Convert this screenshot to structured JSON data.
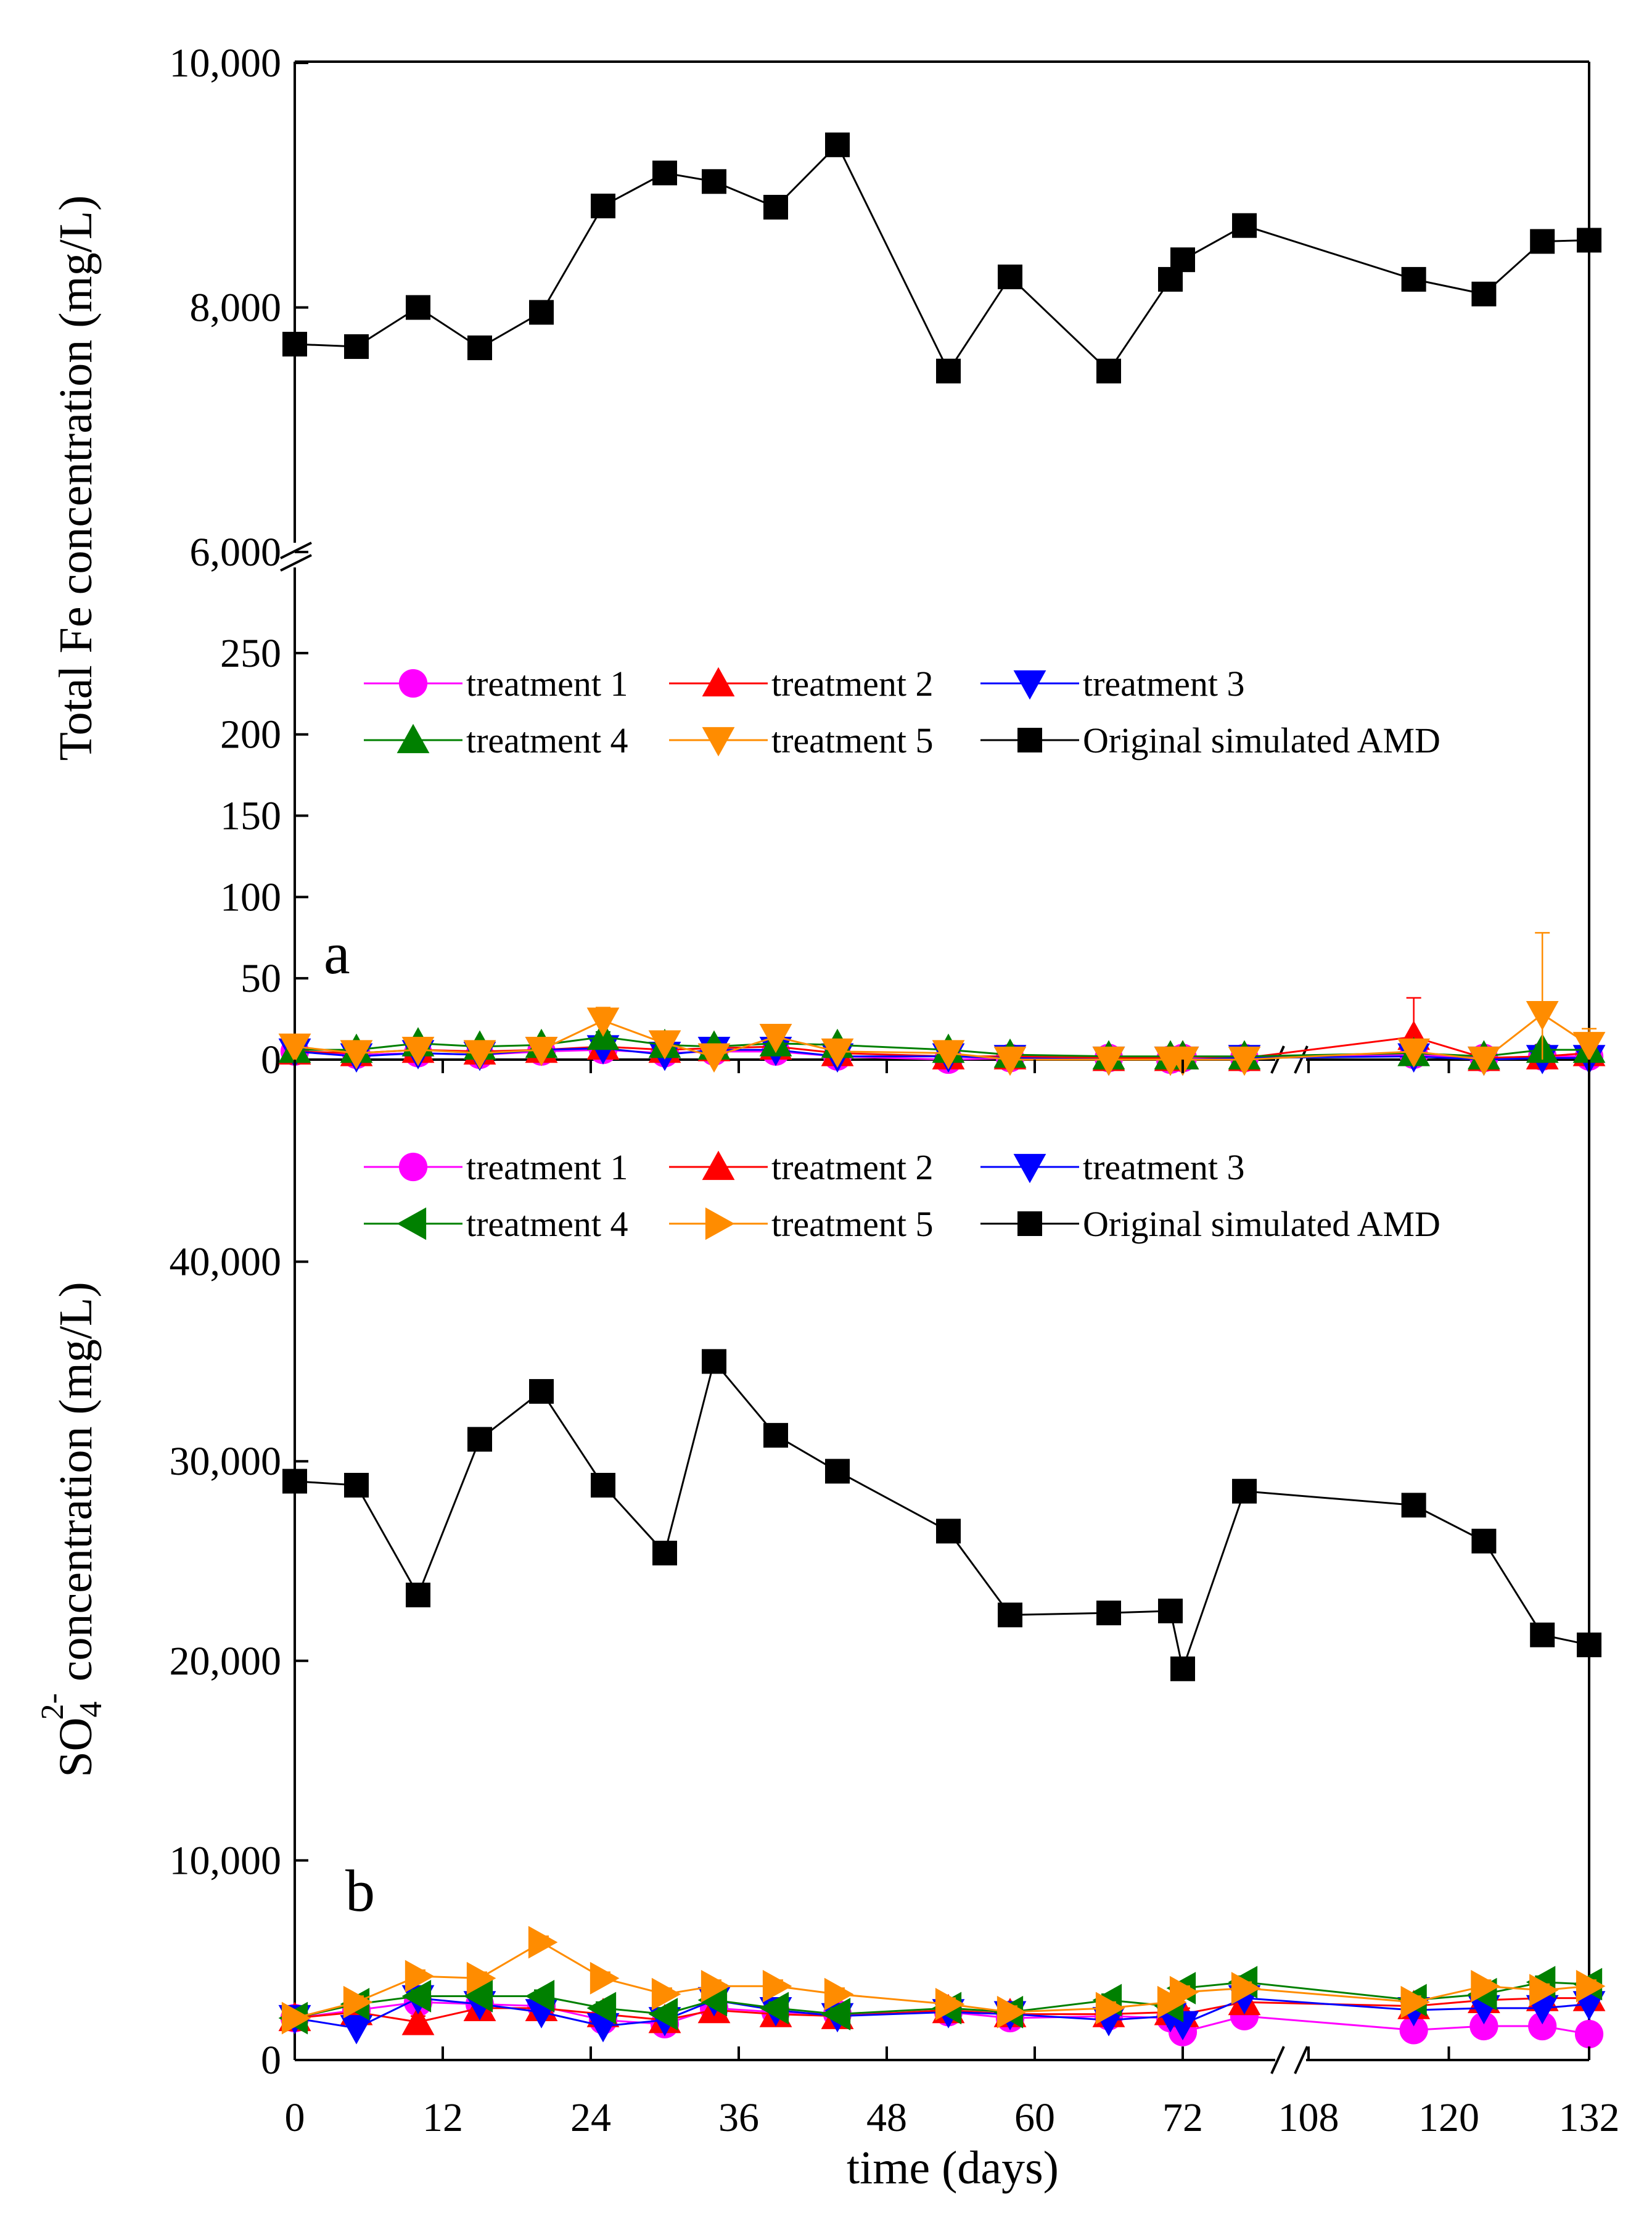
{
  "x_axis": {
    "title": "time (days)",
    "tick_labels": [
      "0",
      "12",
      "24",
      "36",
      "48",
      "60",
      "72",
      "108",
      "120",
      "132"
    ],
    "break_between": [
      80,
      106
    ]
  },
  "panels": [
    {
      "label": "a",
      "ylabel": "Total Fe concentration (mg/L)",
      "y_upper_ticks": [
        "6,000",
        "8,000",
        "10,000"
      ],
      "y_lower_ticks": [
        "0",
        "50",
        "100",
        "150",
        "200",
        "250"
      ],
      "legend_labels": [
        "treatment 1",
        "treatment 2",
        "treatment 3",
        "treatment 4",
        "treatment 5",
        "Original simulated AMD"
      ]
    },
    {
      "label": "b",
      "ylabel_parts": {
        "main": "SO",
        "sub": "4",
        "sup": "2-",
        "rest": " concentration (mg/L)"
      },
      "y_ticks": [
        "0",
        "10,000",
        "20,000",
        "30,000",
        "40,000"
      ],
      "legend_labels": [
        "treatment 1",
        "treatment 2",
        "treatment 3",
        "treatment 4",
        "treatment 5",
        "Original simulated AMD"
      ]
    }
  ],
  "chart_data": [
    {
      "type": "line",
      "panel": "a",
      "xlabel": "time (days)",
      "ylabel": "Total Fe concentration (mg/L)",
      "xlim": [
        0,
        132
      ],
      "x_break": [
        80,
        106
      ],
      "ylim_lower": [
        0,
        280
      ],
      "ylim_upper": [
        6000,
        10000
      ],
      "legend_position": "upper-center",
      "series": [
        {
          "name": "Original simulated AMD",
          "color": "#000000",
          "marker": "square",
          "x": [
            0,
            5,
            10,
            15,
            20,
            25,
            30,
            34,
            39,
            44,
            53,
            58,
            66,
            71,
            72,
            77,
            117,
            123,
            128,
            132
          ],
          "y": [
            7700,
            7680,
            8000,
            7670,
            7960,
            8830,
            9100,
            9030,
            8820,
            9330,
            7480,
            8250,
            7480,
            8230,
            8390,
            8670,
            8230,
            8110,
            8540,
            8550
          ]
        },
        {
          "name": "treatment 1",
          "color": "#ff00ff",
          "marker": "circle",
          "x": [
            0,
            5,
            10,
            15,
            20,
            25,
            30,
            34,
            39,
            44,
            53,
            58,
            66,
            71,
            72,
            77,
            117,
            123,
            128,
            132
          ],
          "y": [
            5,
            3,
            4,
            3,
            5,
            6,
            4,
            5,
            5,
            2,
            0,
            1,
            1,
            0,
            1,
            1,
            3,
            1,
            2,
            2
          ],
          "err": [
            1,
            1,
            1,
            1,
            1,
            2,
            1,
            1,
            1,
            1,
            1,
            1,
            1,
            1,
            1,
            1,
            2,
            1,
            1,
            1
          ]
        },
        {
          "name": "treatment 2",
          "color": "#ff0000",
          "marker": "triangle-up",
          "x": [
            0,
            5,
            10,
            15,
            20,
            25,
            30,
            34,
            39,
            44,
            53,
            58,
            66,
            71,
            72,
            77,
            117,
            123,
            128,
            132
          ],
          "y": [
            5,
            4,
            6,
            5,
            6,
            8,
            6,
            7,
            8,
            4,
            2,
            2,
            1,
            1,
            2,
            1,
            14,
            1,
            2,
            4
          ],
          "err": [
            1,
            2,
            2,
            1,
            2,
            3,
            2,
            2,
            2,
            2,
            1,
            1,
            1,
            1,
            1,
            1,
            24,
            1,
            2,
            12
          ]
        },
        {
          "name": "treatment 3",
          "color": "#0000ff",
          "marker": "triangle-down",
          "x": [
            0,
            5,
            10,
            15,
            20,
            25,
            30,
            34,
            39,
            44,
            53,
            58,
            66,
            71,
            72,
            77,
            117,
            123,
            128,
            132
          ],
          "y": [
            5,
            2,
            4,
            3,
            6,
            7,
            3,
            6,
            6,
            2,
            2,
            1,
            0,
            0,
            0,
            1,
            2,
            0,
            1,
            1
          ],
          "err": [
            1,
            1,
            1,
            1,
            1,
            2,
            1,
            1,
            1,
            1,
            1,
            1,
            1,
            1,
            1,
            1,
            1,
            1,
            1,
            1
          ]
        },
        {
          "name": "treatment 4",
          "color": "#008000",
          "marker": "triangle-up",
          "x": [
            0,
            5,
            10,
            15,
            20,
            25,
            30,
            34,
            39,
            44,
            53,
            58,
            66,
            71,
            72,
            77,
            117,
            123,
            128,
            132
          ],
          "y": [
            6,
            6,
            10,
            8,
            9,
            14,
            9,
            8,
            10,
            9,
            6,
            3,
            2,
            2,
            2,
            2,
            4,
            2,
            6,
            6
          ],
          "err": [
            1,
            2,
            2,
            2,
            2,
            3,
            2,
            2,
            2,
            2,
            1,
            1,
            1,
            1,
            1,
            1,
            3,
            1,
            3,
            2
          ]
        },
        {
          "name": "treatment 5",
          "color": "#ff8c00",
          "marker": "triangle-down",
          "x": [
            0,
            5,
            10,
            15,
            20,
            25,
            30,
            34,
            39,
            44,
            53,
            58,
            66,
            71,
            72,
            77,
            117,
            123,
            128,
            132
          ],
          "y": [
            8,
            4,
            6,
            4,
            6,
            24,
            10,
            2,
            14,
            5,
            4,
            0,
            0,
            0,
            0,
            0,
            5,
            0,
            28,
            9
          ],
          "err": [
            1,
            2,
            2,
            2,
            2,
            8,
            3,
            2,
            4,
            2,
            1,
            1,
            1,
            1,
            1,
            1,
            4,
            1,
            50,
            10
          ]
        }
      ]
    },
    {
      "type": "line",
      "panel": "b",
      "xlabel": "time (days)",
      "ylabel": "SO4 2- concentration (mg/L)",
      "xlim": [
        0,
        132
      ],
      "x_break": [
        80,
        106
      ],
      "ylim": [
        0,
        50000
      ],
      "legend_position": "upper-center",
      "series": [
        {
          "name": "Original simulated AMD",
          "color": "#000000",
          "marker": "square",
          "x": [
            0,
            5,
            10,
            15,
            20,
            25,
            30,
            34,
            39,
            44,
            53,
            58,
            66,
            71,
            72,
            77,
            117,
            123,
            128,
            132
          ],
          "y": [
            29000,
            28800,
            23300,
            31100,
            33500,
            28800,
            25400,
            35000,
            31300,
            29500,
            26500,
            22300,
            22400,
            22500,
            19600,
            28500,
            27800,
            26000,
            21300,
            20800
          ]
        },
        {
          "name": "treatment 1",
          "color": "#ff00ff",
          "marker": "circle",
          "x": [
            0,
            5,
            10,
            15,
            20,
            25,
            30,
            34,
            39,
            44,
            53,
            58,
            66,
            71,
            72,
            77,
            117,
            123,
            128,
            132
          ],
          "y": [
            2100,
            2500,
            2900,
            2800,
            2700,
            2000,
            1800,
            2600,
            2400,
            2300,
            2400,
            2100,
            2200,
            2100,
            1400,
            2200,
            1500,
            1700,
            1700,
            1300
          ],
          "err": [
            200,
            300,
            300,
            300,
            300,
            300,
            300,
            300,
            300,
            300,
            300,
            300,
            300,
            300,
            300,
            300,
            200,
            200,
            200,
            200
          ]
        },
        {
          "name": "treatment 2",
          "color": "#ff0000",
          "marker": "triangle-up",
          "x": [
            0,
            5,
            10,
            15,
            20,
            25,
            30,
            34,
            39,
            44,
            53,
            58,
            66,
            71,
            72,
            77,
            117,
            123,
            128,
            132
          ],
          "y": [
            2100,
            2400,
            1900,
            2600,
            2600,
            2300,
            2000,
            2500,
            2300,
            2200,
            2500,
            2300,
            2300,
            2400,
            2300,
            2900,
            2700,
            3000,
            3100,
            3100
          ],
          "err": [
            200,
            300,
            300,
            300,
            300,
            300,
            300,
            300,
            300,
            300,
            300,
            300,
            300,
            300,
            300,
            300,
            300,
            300,
            300,
            300
          ]
        },
        {
          "name": "treatment 3",
          "color": "#0000ff",
          "marker": "triangle-down",
          "x": [
            0,
            5,
            10,
            15,
            20,
            25,
            30,
            34,
            39,
            44,
            53,
            58,
            66,
            71,
            72,
            77,
            117,
            123,
            128,
            132
          ],
          "y": [
            2100,
            1600,
            3100,
            2800,
            2400,
            1700,
            2000,
            3000,
            2500,
            2200,
            2400,
            2300,
            2000,
            2200,
            1800,
            3100,
            2500,
            2600,
            2600,
            2800
          ],
          "err": [
            200,
            300,
            300,
            300,
            300,
            300,
            300,
            300,
            300,
            300,
            300,
            300,
            300,
            300,
            300,
            300,
            300,
            300,
            300,
            300
          ]
        },
        {
          "name": "treatment 4",
          "color": "#008000",
          "marker": "triangle-left",
          "x": [
            0,
            5,
            10,
            15,
            20,
            25,
            30,
            34,
            39,
            44,
            53,
            58,
            66,
            71,
            72,
            77,
            117,
            123,
            128,
            132
          ],
          "y": [
            2100,
            2800,
            3200,
            3200,
            3200,
            2600,
            2300,
            3000,
            2600,
            2300,
            2600,
            2400,
            3000,
            2700,
            3600,
            3900,
            3000,
            3300,
            3900,
            3800
          ],
          "err": [
            200,
            300,
            300,
            300,
            300,
            300,
            300,
            300,
            300,
            300,
            300,
            300,
            300,
            300,
            300,
            300,
            300,
            300,
            300,
            300
          ]
        },
        {
          "name": "treatment 5",
          "color": "#ff8c00",
          "marker": "triangle-right",
          "x": [
            0,
            5,
            10,
            15,
            20,
            25,
            30,
            34,
            39,
            44,
            53,
            58,
            66,
            71,
            72,
            77,
            117,
            123,
            128,
            132
          ],
          "y": [
            2100,
            2900,
            4200,
            4100,
            5900,
            4100,
            3300,
            3700,
            3700,
            3300,
            2800,
            2400,
            2600,
            2900,
            3400,
            3600,
            2900,
            3700,
            3500,
            3700
          ],
          "err": [
            200,
            300,
            300,
            300,
            300,
            300,
            300,
            300,
            300,
            300,
            300,
            300,
            300,
            300,
            300,
            300,
            300,
            300,
            300,
            300
          ]
        }
      ]
    }
  ]
}
